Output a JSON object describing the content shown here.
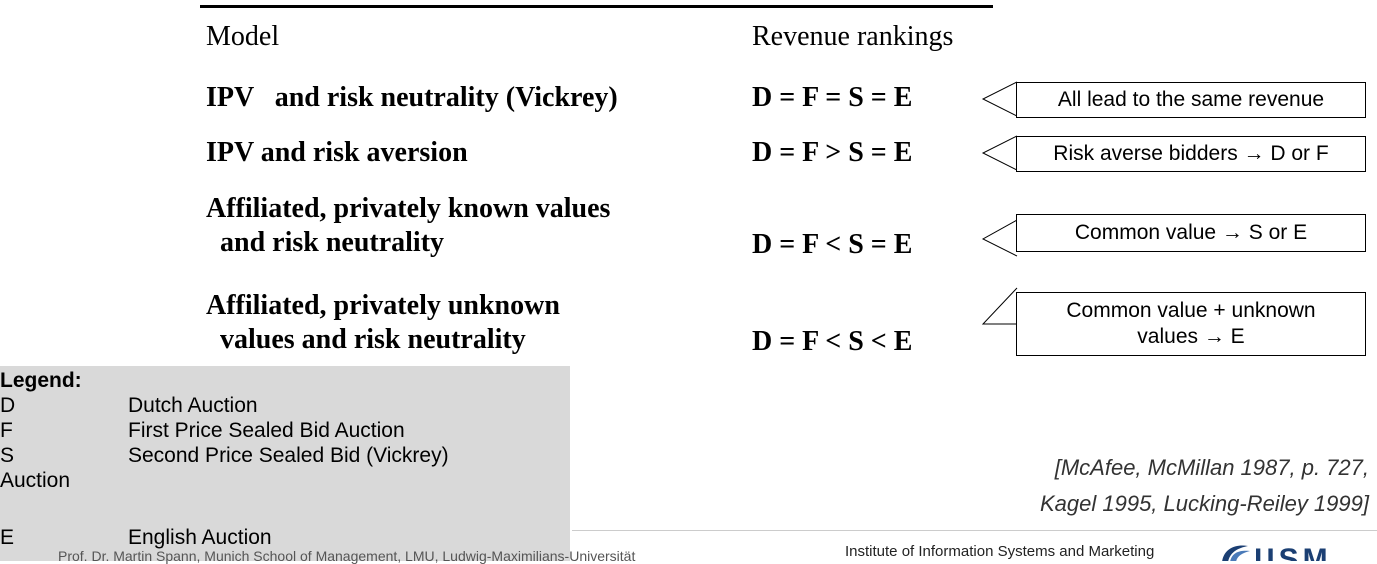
{
  "table": {
    "header": {
      "model": "Model",
      "rankings": "Revenue rankings"
    },
    "rows": [
      {
        "model_lines": [
          "IPV   and risk neutrality (Vickrey)"
        ],
        "ranking": "D = F = S = E"
      },
      {
        "model_lines": [
          "IPV and risk aversion"
        ],
        "ranking": "D = F > S = E"
      },
      {
        "model_lines": [
          "Affiliated, privately known values",
          "  and risk neutrality"
        ],
        "ranking": "D = F < S = E"
      },
      {
        "model_lines": [
          "Affiliated, privately unknown",
          "  values and risk neutrality"
        ],
        "ranking": "D = F < S < E"
      }
    ]
  },
  "callouts": [
    {
      "text": "All lead to the same revenue"
    },
    {
      "text": "Risk averse bidders → D or F"
    },
    {
      "text": "Common value → S or E"
    },
    {
      "line1": "Common value + unknown",
      "line2": "values → E"
    }
  ],
  "legend": {
    "title": "Legend:",
    "items": [
      {
        "key": "D",
        "label": "Dutch Auction"
      },
      {
        "key": "F",
        "label": "First Price Sealed Bid Auction"
      },
      {
        "key": "S",
        "label": "Second Price Sealed Bid (Vickrey)"
      },
      {
        "key": "Auction",
        "label": ""
      },
      {
        "key": "E",
        "label": "English Auction"
      }
    ]
  },
  "citation": {
    "line1": "[McAfee, McMillan 1987, p. 727,",
    "line2": "Kagel 1995, Lucking-Reiley 1999]"
  },
  "footer": {
    "left": "Prof. Dr. Martin Spann, Munich School of Management, LMU, Ludwig-Maximilians-Universität",
    "institute": "Institute of Information Systems and Marketing",
    "logo_text": "IISM",
    "logo_color": "#1b3f73"
  }
}
